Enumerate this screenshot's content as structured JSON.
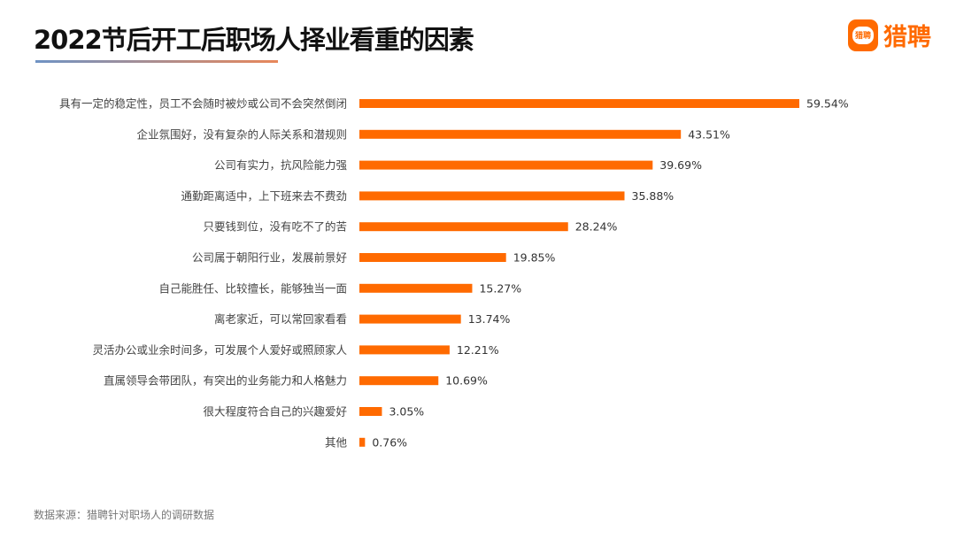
{
  "header": {
    "title": "2022节后开工后职场人择业看重的因素",
    "logo_text": "猎聘",
    "logo_badge_text": "猎聘"
  },
  "footer": {
    "source": "数据来源：猎聘针对职场人的调研数据"
  },
  "colors": {
    "bar": "#ff6a00",
    "label": "#444444",
    "title": "#111111"
  },
  "chart_data": {
    "type": "bar",
    "orientation": "horizontal",
    "title": "2022节后开工后职场人择业看重的因素",
    "categories": [
      "具有一定的稳定性，员工不会随时被炒或公司不会突然倒闭",
      "企业氛围好，没有复杂的人际关系和潜规则",
      "公司有实力，抗风险能力强",
      "通勤距离适中，上下班来去不费劲",
      "只要钱到位，没有吃不了的苦",
      "公司属于朝阳行业，发展前景好",
      "自己能胜任、比较擅长，能够独当一面",
      "离老家近，可以常回家看看",
      "灵活办公或业余时间多，可发展个人爱好或照顾家人",
      "直属领导会带团队，有突出的业务能力和人格魅力",
      "很大程度符合自己的兴趣爱好",
      "其他"
    ],
    "values": [
      59.54,
      43.51,
      39.69,
      35.88,
      28.24,
      19.85,
      15.27,
      13.74,
      12.21,
      10.69,
      3.05,
      0.76
    ],
    "data_labels": [
      "59.54%",
      "43.51%",
      "39.69%",
      "35.88%",
      "28.24%",
      "19.85%",
      "15.27%",
      "13.74%",
      "12.21%",
      "10.69%",
      "3.05%",
      "0.76%"
    ],
    "unit": "%",
    "grid": false,
    "legend": "none"
  }
}
